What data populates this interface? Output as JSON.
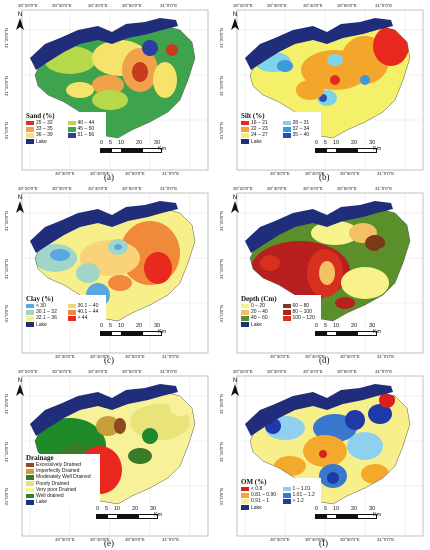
{
  "panels": [
    {
      "caption": "(a)",
      "legend": {
        "title": "Sand (%)",
        "items": [
          {
            "label": "25 – 32",
            "color": "#c83a1e"
          },
          {
            "label": "40 – 44",
            "color": "#b5d94b"
          },
          {
            "label": "33 – 35",
            "color": "#f0a24a"
          },
          {
            "label": "45 – 50",
            "color": "#3fa34d"
          },
          {
            "label": "36 – 39",
            "color": "#f6e36b"
          },
          {
            "label": "51 – 56",
            "color": "#2a3fa0"
          },
          {
            "label": "Lake",
            "color": "#1f2d7a"
          }
        ]
      }
    },
    {
      "caption": "(b)",
      "legend": {
        "title": "Silt (%)",
        "items": [
          {
            "label": "16 – 21",
            "color": "#e8281e"
          },
          {
            "label": "28 – 31",
            "color": "#7fd3e8"
          },
          {
            "label": "22 – 23",
            "color": "#f4a52c"
          },
          {
            "label": "32 – 34",
            "color": "#3c9ad8"
          },
          {
            "label": "24 – 27",
            "color": "#f5f06a"
          },
          {
            "label": "35 – 40",
            "color": "#2b4fb0"
          },
          {
            "label": "Lake",
            "color": "#1f2d7a"
          }
        ]
      }
    },
    {
      "caption": "(c)",
      "legend": {
        "title": "Clay (%)",
        "items": [
          {
            "label": "< 30",
            "color": "#5aa6e0"
          },
          {
            "label": "36.1 – 40",
            "color": "#f9d27a"
          },
          {
            "label": "30.1 – 32",
            "color": "#9fd6c8"
          },
          {
            "label": "40.1 – 44",
            "color": "#f08a3a"
          },
          {
            "label": "32.1 – 36",
            "color": "#f6ef8a"
          },
          {
            "label": "> 44",
            "color": "#e82a1e"
          },
          {
            "label": "Lake",
            "color": "#1f2d7a"
          }
        ]
      }
    },
    {
      "caption": "(d)",
      "legend": {
        "title": "Depth (Cm)",
        "items": [
          {
            "label": "0 – 20",
            "color": "#f7f28a"
          },
          {
            "label": "60 – 80",
            "color": "#7a3a1a"
          },
          {
            "label": "20 – 40",
            "color": "#f3c065"
          },
          {
            "label": "80 – 100",
            "color": "#b82020"
          },
          {
            "label": "40 – 60",
            "color": "#5a8f2a"
          },
          {
            "label": "100 – 120",
            "color": "#d8301e"
          },
          {
            "label": "Lake",
            "color": "#1f2d7a"
          }
        ]
      }
    },
    {
      "caption": "(e)",
      "legend": {
        "title": "Drainage",
        "items": [
          {
            "label": "Excessively Drained",
            "color": "#8c4a1e"
          },
          {
            "label": "Imperfectly Drained",
            "color": "#c8a03a"
          },
          {
            "label": "Moderately Well Drained",
            "color": "#3a7a2a"
          },
          {
            "label": "Poorly Drained",
            "color": "#e8e47a"
          },
          {
            "label": "Very poor Drained",
            "color": "#f7f19a"
          },
          {
            "label": "Well drained",
            "color": "#1f8a2a"
          },
          {
            "label": "Lake",
            "color": "#1f2d7a"
          }
        ]
      }
    },
    {
      "caption": "(f)",
      "legend": {
        "title": "OM (%)",
        "items": [
          {
            "label": "< 0.8",
            "color": "#d8201e"
          },
          {
            "label": "1 – 1.01",
            "color": "#8fd0f0"
          },
          {
            "label": "0.81 – 0.90",
            "color": "#f4a92c"
          },
          {
            "label": "1.01 – 1.2",
            "color": "#3a78d0"
          },
          {
            "label": "0.91 – 1",
            "color": "#f7f08a"
          },
          {
            "label": "> 1.2",
            "color": "#1f3aa8"
          },
          {
            "label": "Lake",
            "color": "#1f2d7a"
          }
        ]
      }
    }
  ],
  "axes": {
    "top_ticks": [
      "30°20'0\"E",
      "30°30'0\"E",
      "30°40'0\"E",
      "30°50'0\"E",
      "31°0'0\"E"
    ],
    "bottom_ticks": [
      "30°30'0\"E",
      "30°40'0\"E",
      "30°50'0\"E",
      "31°0'0\"E"
    ],
    "left_ticks": [
      "31°20'0\"N",
      "31°10'0\"N",
      "31°0'0\"N"
    ]
  },
  "scale": {
    "labels": [
      "0",
      "5",
      "10",
      "20",
      "30"
    ],
    "unit": "Km"
  },
  "north_label": "N"
}
